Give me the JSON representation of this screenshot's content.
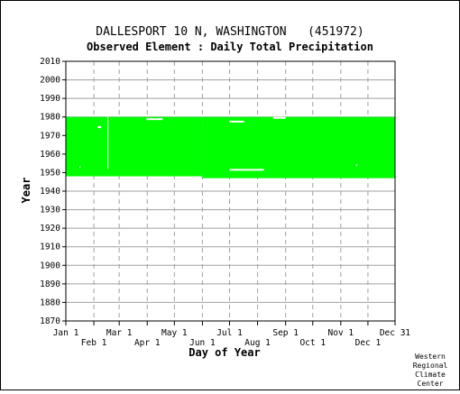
{
  "chart_data": {
    "type": "heatmap",
    "title": "DALLESPORT 10 N, WASHINGTON   (451972)",
    "subtitle": "Observed Element : Daily Total Precipitation",
    "xlabel": "Day of Year",
    "ylabel": "Year",
    "x_range_days": [
      1,
      365
    ],
    "y_range": [
      1870,
      2010
    ],
    "y_ticks": [
      1870,
      1880,
      1890,
      1900,
      1910,
      1920,
      1930,
      1940,
      1950,
      1960,
      1970,
      1980,
      1990,
      2000,
      2010
    ],
    "x_ticks_top_row": [
      {
        "label": "Jan 1",
        "day": 1
      },
      {
        "label": "Mar 1",
        "day": 60
      },
      {
        "label": "May 1",
        "day": 121
      },
      {
        "label": "Jul 1",
        "day": 182
      },
      {
        "label": "Sep 1",
        "day": 244
      },
      {
        "label": "Nov 1",
        "day": 305
      },
      {
        "label": "Dec 31",
        "day": 365
      }
    ],
    "x_ticks_bottom_row": [
      {
        "label": "Feb 1",
        "day": 32
      },
      {
        "label": "Apr 1",
        "day": 91
      },
      {
        "label": "Jun 1",
        "day": 152
      },
      {
        "label": "Aug 1",
        "day": 213
      },
      {
        "label": "Oct 1",
        "day": 274
      },
      {
        "label": "Dec 1",
        "day": 335
      }
    ],
    "grid": true,
    "data_color": "#00ff00",
    "coverage_blocks": [
      {
        "day_start": 1,
        "day_end": 152,
        "year_start": 1948,
        "year_end": 1980
      },
      {
        "day_start": 152,
        "day_end": 365,
        "year_start": 1947,
        "year_end": 1980
      }
    ],
    "missing_segments": [
      {
        "day_start": 36,
        "day_end": 40,
        "year": 1974.5
      },
      {
        "day_start": 47,
        "day_end": 48,
        "year_start": 1952,
        "year_end": 1980
      },
      {
        "day_start": 90,
        "day_end": 108,
        "year": 1978.8
      },
      {
        "day_start": 182,
        "day_end": 198,
        "year": 1977.5
      },
      {
        "day_start": 182,
        "day_end": 220,
        "year": 1951.5
      },
      {
        "day_start": 230,
        "day_end": 244,
        "year": 1979.5
      },
      {
        "day_start": 16,
        "day_end": 17,
        "year": 1953
      },
      {
        "day_start": 322,
        "day_end": 323,
        "year": 1954
      }
    ]
  },
  "credit_lines": [
    "Western",
    "Regional",
    "Climate",
    "Center"
  ]
}
